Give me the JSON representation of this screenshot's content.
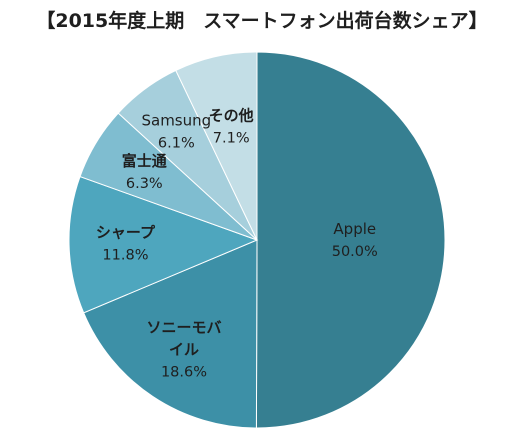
{
  "chart_data": {
    "type": "pie",
    "title": "【2015年度上期　スマートフォン出荷台数シェア】",
    "slices": [
      {
        "name": "Apple",
        "name_lines": [
          "Apple"
        ],
        "value": 50.0,
        "label": "50.0%",
        "color": "#367f91",
        "label_style": "light"
      },
      {
        "name": "ソニーモバイル",
        "name_lines": [
          "ソニーモバ",
          "イル"
        ],
        "value": 18.6,
        "label": "18.6%",
        "color": "#3d90a7",
        "label_style": "bold"
      },
      {
        "name": "シャープ",
        "name_lines": [
          "シャープ"
        ],
        "value": 11.8,
        "label": "11.8%",
        "color": "#4ea6be",
        "label_style": "bold"
      },
      {
        "name": "富士通",
        "name_lines": [
          "富士通"
        ],
        "value": 6.3,
        "label": "6.3%",
        "color": "#7fbdd0",
        "label_style": "bold"
      },
      {
        "name": "Samsung",
        "name_lines": [
          "Samsung"
        ],
        "value": 6.1,
        "label": "6.1%",
        "color": "#a6cfdc",
        "label_style": "light"
      },
      {
        "name": "その他",
        "name_lines": [
          "その他"
        ],
        "value": 7.1,
        "label": "7.1%",
        "color": "#c3dee6",
        "label_style": "bold"
      }
    ],
    "start": "12 o'clock",
    "direction": "clockwise",
    "legend": "none"
  }
}
